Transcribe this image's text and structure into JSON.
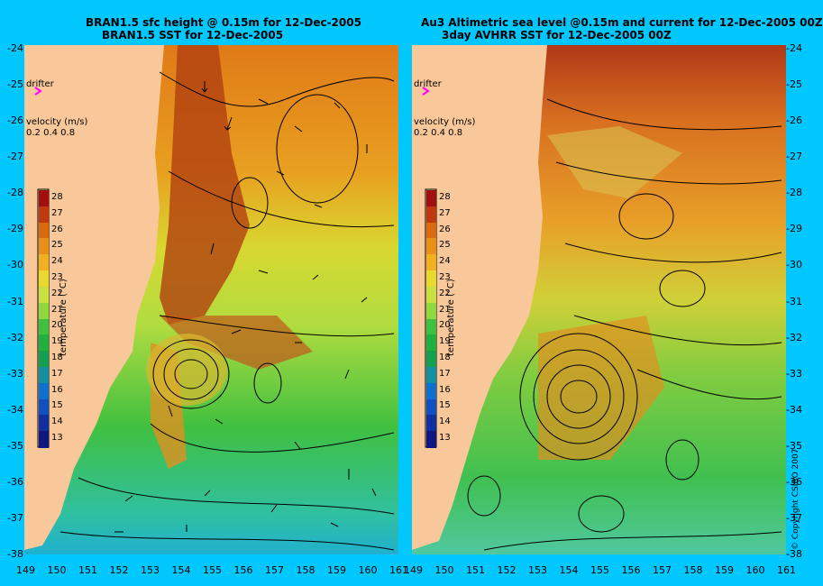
{
  "left_panel": {
    "title_line1": "BRAN1.5 sfc height @ 0.15m for 12-Dec-2005",
    "title_line2": "BRAN1.5 SST for 12-Dec-2005"
  },
  "right_panel": {
    "title_line1": "Au3 Altimetric sea level  @0.15m and current for 12-Dec-2005 00Z",
    "title_line2": "3day AVHRR SST for 12-Dec-2005 00Z"
  },
  "drifter_label": "drifter",
  "velocity": {
    "label": "velocity (m/s)",
    "values": "0.2 0.4 0.8"
  },
  "colorbar": {
    "label": "temperature (°C)",
    "ticks": [
      "28",
      "27",
      "26",
      "25",
      "24",
      "23",
      "22",
      "21",
      "20",
      "19",
      "18",
      "17",
      "16",
      "15",
      "14",
      "13"
    ],
    "colors": [
      "#a01010",
      "#c03a10",
      "#d86a10",
      "#e8901a",
      "#f0b020",
      "#e8d830",
      "#c8e040",
      "#90d840",
      "#40c040",
      "#20b040",
      "#10a050",
      "#1090a0",
      "#1070d0",
      "#1050c0",
      "#1030a0",
      "#101880"
    ]
  },
  "lat_ticks": [
    "-24",
    "-25",
    "-26",
    "-27",
    "-28",
    "-29",
    "-30",
    "-31",
    "-32",
    "-33",
    "-34",
    "-35",
    "-36",
    "-37",
    "-38"
  ],
  "lon_ticks_left": [
    "149",
    "150",
    "151",
    "152",
    "153",
    "154",
    "155",
    "156",
    "157",
    "158",
    "159",
    "160",
    "161"
  ],
  "lon_ticks_right": [
    "149",
    "150",
    "151",
    "152",
    "153",
    "154",
    "155",
    "156",
    "157",
    "158",
    "159",
    "160",
    "161"
  ],
  "copyright": "© Copyright CSIRO 2007"
}
